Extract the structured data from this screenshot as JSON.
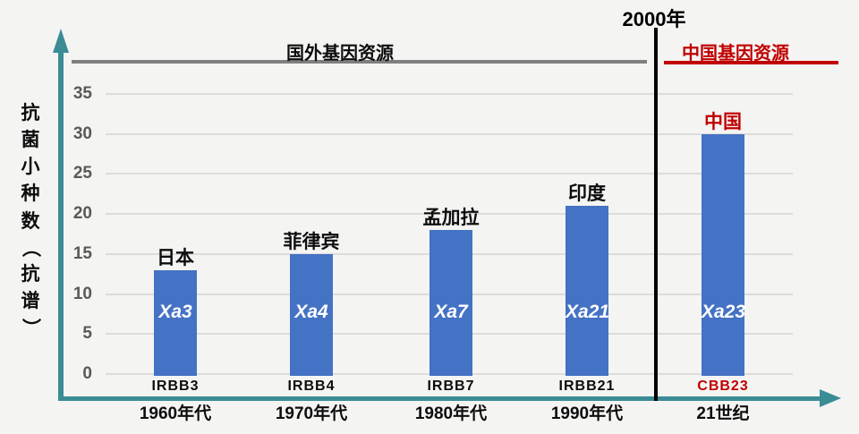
{
  "page": {
    "background": "#f4f4f2"
  },
  "annotations": {
    "foreign_section_label": "国外基因资源",
    "china_section_label": "中国基因资源",
    "year_divider_label": "2000年",
    "foreign_line_color": "#7f7f7f",
    "china_line_color": "#c00000",
    "divider_color": "#000000"
  },
  "chart_data": {
    "type": "bar",
    "title": "",
    "xlabel": "",
    "ylabel": "抗菌小种数（抗谱）",
    "ylim": [
      0,
      35
    ],
    "yticks": [
      35,
      30,
      25,
      20,
      15,
      10,
      5,
      0
    ],
    "grid": true,
    "legend": "none",
    "bar_color": "#4472c4",
    "axis_color": "#3b8c95",
    "tick_color": "#595959",
    "categories": [
      "1960年代",
      "1970年代",
      "1980年代",
      "1990年代",
      "21世纪"
    ],
    "values": [
      13,
      15,
      18,
      21,
      30
    ],
    "bars": [
      {
        "country": "日本",
        "gene": "Xa3",
        "line": "IRBB3",
        "value": 13,
        "country_color": "#0d0d0d",
        "line_color": "#0d0d0d"
      },
      {
        "country": "菲律宾",
        "gene": "Xa4",
        "line": "IRBB4",
        "value": 15,
        "country_color": "#0d0d0d",
        "line_color": "#0d0d0d"
      },
      {
        "country": "孟加拉",
        "gene": "Xa7",
        "line": "IRBB7",
        "value": 18,
        "country_color": "#0d0d0d",
        "line_color": "#0d0d0d"
      },
      {
        "country": "印度",
        "gene": "Xa21",
        "line": "IRBB21",
        "value": 21,
        "country_color": "#0d0d0d",
        "line_color": "#0d0d0d"
      },
      {
        "country": "中国",
        "gene": "Xa23",
        "line": "CBB23",
        "value": 30,
        "country_color": "#c00000",
        "line_color": "#c00000"
      }
    ]
  }
}
